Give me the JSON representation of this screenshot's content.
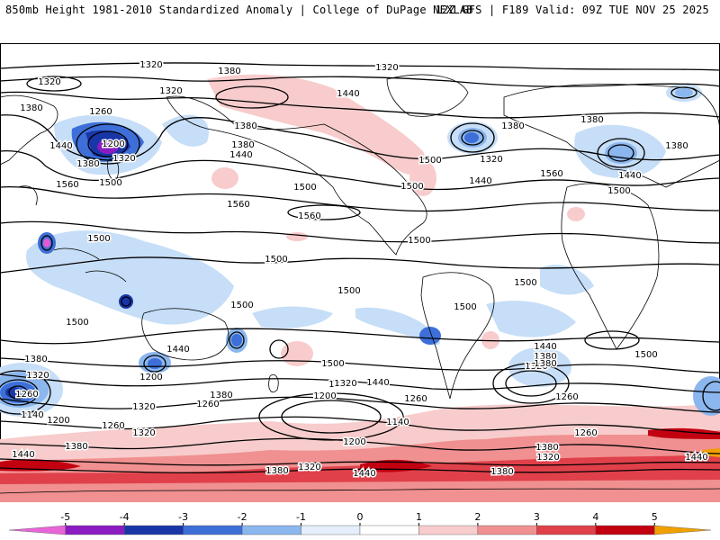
{
  "header": {
    "left_title": "850mb Height 1981-2010 Standardized Anomaly | College of DuPage NEXLAB",
    "right_title": "12Z GFS | F189 Valid: 09Z TUE NOV 25 2025"
  },
  "map": {
    "contour_labels": [
      {
        "id": "c01",
        "text": "1320"
      },
      {
        "id": "c02",
        "text": "1380"
      },
      {
        "id": "c03",
        "text": "1320"
      },
      {
        "id": "c04",
        "text": "1320"
      },
      {
        "id": "c05",
        "text": "1320"
      },
      {
        "id": "c06",
        "text": "1380"
      },
      {
        "id": "c07",
        "text": "1440"
      },
      {
        "id": "c08",
        "text": "1260"
      },
      {
        "id": "c09",
        "text": "1200"
      },
      {
        "id": "c10",
        "text": "1320"
      },
      {
        "id": "c11",
        "text": "1380"
      },
      {
        "id": "c12",
        "text": "1440"
      },
      {
        "id": "c13",
        "text": "1380"
      },
      {
        "id": "c14",
        "text": "1380"
      },
      {
        "id": "c15",
        "text": "1440"
      },
      {
        "id": "c16",
        "text": "1500"
      },
      {
        "id": "c17",
        "text": "1560"
      },
      {
        "id": "c18",
        "text": "1500"
      },
      {
        "id": "c19",
        "text": "1560"
      },
      {
        "id": "c20",
        "text": "1560"
      },
      {
        "id": "c21",
        "text": "1500"
      },
      {
        "id": "c22",
        "text": "1440"
      },
      {
        "id": "c23",
        "text": "1500"
      },
      {
        "id": "c24",
        "text": "1380"
      },
      {
        "id": "c25",
        "text": "1320"
      },
      {
        "id": "c26",
        "text": "1440"
      },
      {
        "id": "c27",
        "text": "1380"
      },
      {
        "id": "c28",
        "text": "1380"
      },
      {
        "id": "c29",
        "text": "1440"
      },
      {
        "id": "c30",
        "text": "1500"
      },
      {
        "id": "c31",
        "text": "1560"
      },
      {
        "id": "c32",
        "text": "1500"
      },
      {
        "id": "c33",
        "text": "1500"
      },
      {
        "id": "c34",
        "text": "1500"
      },
      {
        "id": "c35",
        "text": "1500"
      },
      {
        "id": "c36",
        "text": "1500"
      },
      {
        "id": "c37",
        "text": "1500"
      },
      {
        "id": "c38",
        "text": "1500"
      },
      {
        "id": "c39",
        "text": "1500"
      },
      {
        "id": "c40",
        "text": "1440"
      },
      {
        "id": "c41",
        "text": "1380"
      },
      {
        "id": "c42",
        "text": "1320"
      },
      {
        "id": "c43",
        "text": "1260"
      },
      {
        "id": "c44",
        "text": "1500"
      },
      {
        "id": "c45",
        "text": "1440"
      },
      {
        "id": "c46",
        "text": "1380"
      },
      {
        "id": "c47",
        "text": "1500"
      },
      {
        "id": "c48",
        "text": "1440"
      },
      {
        "id": "c49",
        "text": "1320"
      },
      {
        "id": "c50",
        "text": "1380"
      },
      {
        "id": "c51",
        "text": "1200"
      },
      {
        "id": "c52",
        "text": "1260"
      },
      {
        "id": "c53",
        "text": "1140"
      },
      {
        "id": "c54",
        "text": "1200"
      },
      {
        "id": "c55",
        "text": "1380"
      },
      {
        "id": "c56",
        "text": "1260"
      },
      {
        "id": "c57",
        "text": "1320"
      },
      {
        "id": "c58",
        "text": "1260"
      },
      {
        "id": "c59",
        "text": "1320"
      },
      {
        "id": "c60",
        "text": "1380"
      },
      {
        "id": "c61",
        "text": "1440"
      },
      {
        "id": "c62",
        "text": "1140"
      },
      {
        "id": "c63",
        "text": "1200"
      },
      {
        "id": "c64",
        "text": "1260"
      },
      {
        "id": "c65",
        "text": "1380"
      },
      {
        "id": "c66",
        "text": "1320"
      },
      {
        "id": "c67",
        "text": "1440"
      },
      {
        "id": "c68",
        "text": "1380"
      },
      {
        "id": "c69",
        "text": "1200"
      },
      {
        "id": "c70",
        "text": "1260"
      },
      {
        "id": "c71",
        "text": "1320"
      },
      {
        "id": "c72",
        "text": "1440"
      },
      {
        "id": "c73",
        "text": "1380"
      },
      {
        "id": "c74",
        "text": "1320"
      },
      {
        "id": "c75",
        "text": "1380"
      }
    ],
    "colors": {
      "ocean": "#ffffff",
      "coast": "#000000",
      "contour": "#000000",
      "neg_1": "#c6def7",
      "neg_2": "#8bb6ee",
      "neg_3": "#3e6fd8",
      "neg_4": "#1836a8",
      "neg_5": "#8a1cc2",
      "neg_6": "#e25ad4",
      "pos_1": "#f8cccc",
      "pos_2": "#f09090",
      "pos_3": "#e0404a",
      "pos_4": "#c20010",
      "pos_5": "#f0a000"
    }
  },
  "colorbar": {
    "ticks": [
      "-5",
      "-4",
      "-3",
      "-2",
      "-1",
      "0",
      "1",
      "2",
      "3",
      "4",
      "5"
    ],
    "segments": [
      "#e865d8",
      "#8a1cc2",
      "#1836a8",
      "#3e6fd8",
      "#8bb6ee",
      "#e4effb",
      "#ffffff",
      "#f8cccc",
      "#f09090",
      "#e0404a",
      "#c20010",
      "#f0a000"
    ]
  }
}
